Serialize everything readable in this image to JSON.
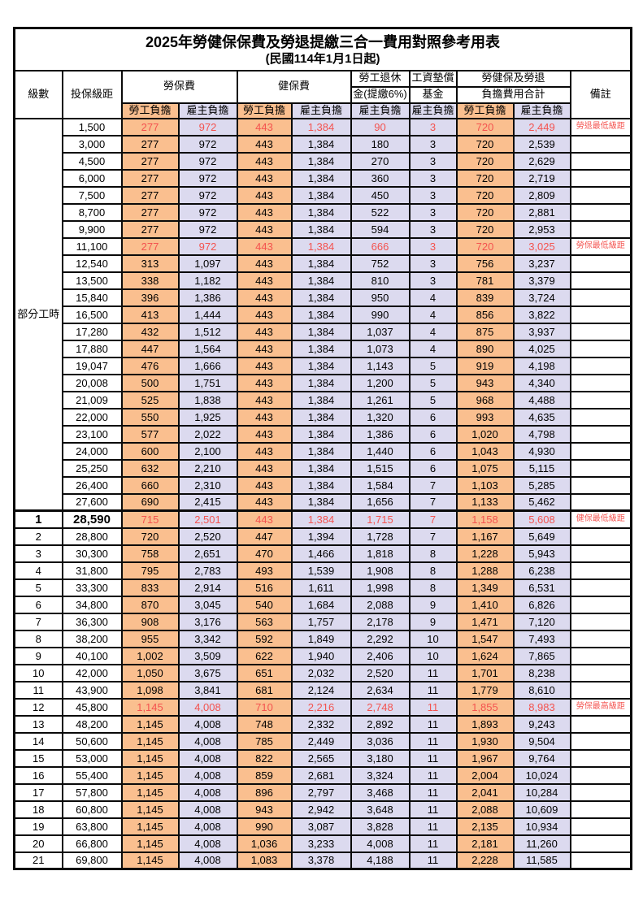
{
  "title": {
    "line1": "2025年勞健保保費及勞退提繳三合一費用對照參考用表",
    "line2": "(民國114年1月1日起)"
  },
  "columns": {
    "level": "級數",
    "bracket": "投保級距",
    "labor_insurance": "勞保費",
    "health_insurance": "健保費",
    "pension_line1": "勞工退休",
    "pension_line2": "金(提繳6%)",
    "wage_fund_line1": "工資墊償",
    "wage_fund_line2": "基金",
    "total_line1": "勞健保及勞退",
    "total_line2": "負擔費用合計",
    "remark": "備註",
    "employee_share": "勞工負擔",
    "employer_share": "雇主負擔"
  },
  "part_time": {
    "label": "部分工時",
    "row_count": 23
  },
  "colors": {
    "employee_bg": "#FABF8F",
    "employer_bg": "#DCDAEF",
    "highlight_text": "#F4534F",
    "border": "#0a0a0a"
  },
  "rows": [
    {
      "lvl": null,
      "bracket": "1,500",
      "fees": [
        "277",
        "972",
        "443",
        "1,384",
        "90",
        "3",
        "720",
        "2,449"
      ],
      "remark": "勞退最低級距",
      "hl": true
    },
    {
      "lvl": null,
      "bracket": "3,000",
      "fees": [
        "277",
        "972",
        "443",
        "1,384",
        "180",
        "3",
        "720",
        "2,539"
      ],
      "remark": ""
    },
    {
      "lvl": null,
      "bracket": "4,500",
      "fees": [
        "277",
        "972",
        "443",
        "1,384",
        "270",
        "3",
        "720",
        "2,629"
      ],
      "remark": ""
    },
    {
      "lvl": null,
      "bracket": "6,000",
      "fees": [
        "277",
        "972",
        "443",
        "1,384",
        "360",
        "3",
        "720",
        "2,719"
      ],
      "remark": ""
    },
    {
      "lvl": null,
      "bracket": "7,500",
      "fees": [
        "277",
        "972",
        "443",
        "1,384",
        "450",
        "3",
        "720",
        "2,809"
      ],
      "remark": ""
    },
    {
      "lvl": null,
      "bracket": "8,700",
      "fees": [
        "277",
        "972",
        "443",
        "1,384",
        "522",
        "3",
        "720",
        "2,881"
      ],
      "remark": ""
    },
    {
      "lvl": null,
      "bracket": "9,900",
      "fees": [
        "277",
        "972",
        "443",
        "1,384",
        "594",
        "3",
        "720",
        "2,953"
      ],
      "remark": ""
    },
    {
      "lvl": null,
      "bracket": "11,100",
      "fees": [
        "277",
        "972",
        "443",
        "1,384",
        "666",
        "3",
        "720",
        "3,025"
      ],
      "remark": "勞保最低級距",
      "hl": true
    },
    {
      "lvl": null,
      "bracket": "12,540",
      "fees": [
        "313",
        "1,097",
        "443",
        "1,384",
        "752",
        "3",
        "756",
        "3,237"
      ],
      "remark": ""
    },
    {
      "lvl": null,
      "bracket": "13,500",
      "fees": [
        "338",
        "1,182",
        "443",
        "1,384",
        "810",
        "3",
        "781",
        "3,379"
      ],
      "remark": ""
    },
    {
      "lvl": null,
      "bracket": "15,840",
      "fees": [
        "396",
        "1,386",
        "443",
        "1,384",
        "950",
        "4",
        "839",
        "3,724"
      ],
      "remark": ""
    },
    {
      "lvl": null,
      "bracket": "16,500",
      "fees": [
        "413",
        "1,444",
        "443",
        "1,384",
        "990",
        "4",
        "856",
        "3,822"
      ],
      "remark": ""
    },
    {
      "lvl": null,
      "bracket": "17,280",
      "fees": [
        "432",
        "1,512",
        "443",
        "1,384",
        "1,037",
        "4",
        "875",
        "3,937"
      ],
      "remark": ""
    },
    {
      "lvl": null,
      "bracket": "17,880",
      "fees": [
        "447",
        "1,564",
        "443",
        "1,384",
        "1,073",
        "4",
        "890",
        "4,025"
      ],
      "remark": ""
    },
    {
      "lvl": null,
      "bracket": "19,047",
      "fees": [
        "476",
        "1,666",
        "443",
        "1,384",
        "1,143",
        "5",
        "919",
        "4,198"
      ],
      "remark": ""
    },
    {
      "lvl": null,
      "bracket": "20,008",
      "fees": [
        "500",
        "1,751",
        "443",
        "1,384",
        "1,200",
        "5",
        "943",
        "4,340"
      ],
      "remark": ""
    },
    {
      "lvl": null,
      "bracket": "21,009",
      "fees": [
        "525",
        "1,838",
        "443",
        "1,384",
        "1,261",
        "5",
        "968",
        "4,488"
      ],
      "remark": ""
    },
    {
      "lvl": null,
      "bracket": "22,000",
      "fees": [
        "550",
        "1,925",
        "443",
        "1,384",
        "1,320",
        "6",
        "993",
        "4,635"
      ],
      "remark": ""
    },
    {
      "lvl": null,
      "bracket": "23,100",
      "fees": [
        "577",
        "2,022",
        "443",
        "1,384",
        "1,386",
        "6",
        "1,020",
        "4,798"
      ],
      "remark": ""
    },
    {
      "lvl": null,
      "bracket": "24,000",
      "fees": [
        "600",
        "2,100",
        "443",
        "1,384",
        "1,440",
        "6",
        "1,043",
        "4,930"
      ],
      "remark": ""
    },
    {
      "lvl": null,
      "bracket": "25,250",
      "fees": [
        "632",
        "2,210",
        "443",
        "1,384",
        "1,515",
        "6",
        "1,075",
        "5,115"
      ],
      "remark": ""
    },
    {
      "lvl": null,
      "bracket": "26,400",
      "fees": [
        "660",
        "2,310",
        "443",
        "1,384",
        "1,584",
        "7",
        "1,103",
        "5,285"
      ],
      "remark": ""
    },
    {
      "lvl": null,
      "bracket": "27,600",
      "fees": [
        "690",
        "2,415",
        "443",
        "1,384",
        "1,656",
        "7",
        "1,133",
        "5,462"
      ],
      "remark": ""
    },
    {
      "lvl": "1",
      "bracket": "28,590",
      "fees": [
        "715",
        "2,501",
        "443",
        "1,384",
        "1,715",
        "7",
        "1,158",
        "5,608"
      ],
      "remark": "健保最低級距",
      "hl": true,
      "sec": true,
      "big": true
    },
    {
      "lvl": "2",
      "bracket": "28,800",
      "fees": [
        "720",
        "2,520",
        "447",
        "1,394",
        "1,728",
        "7",
        "1,167",
        "5,649"
      ],
      "remark": ""
    },
    {
      "lvl": "3",
      "bracket": "30,300",
      "fees": [
        "758",
        "2,651",
        "470",
        "1,466",
        "1,818",
        "8",
        "1,228",
        "5,943"
      ],
      "remark": ""
    },
    {
      "lvl": "4",
      "bracket": "31,800",
      "fees": [
        "795",
        "2,783",
        "493",
        "1,539",
        "1,908",
        "8",
        "1,288",
        "6,238"
      ],
      "remark": ""
    },
    {
      "lvl": "5",
      "bracket": "33,300",
      "fees": [
        "833",
        "2,914",
        "516",
        "1,611",
        "1,998",
        "8",
        "1,349",
        "6,531"
      ],
      "remark": ""
    },
    {
      "lvl": "6",
      "bracket": "34,800",
      "fees": [
        "870",
        "3,045",
        "540",
        "1,684",
        "2,088",
        "9",
        "1,410",
        "6,826"
      ],
      "remark": ""
    },
    {
      "lvl": "7",
      "bracket": "36,300",
      "fees": [
        "908",
        "3,176",
        "563",
        "1,757",
        "2,178",
        "9",
        "1,471",
        "7,120"
      ],
      "remark": ""
    },
    {
      "lvl": "8",
      "bracket": "38,200",
      "fees": [
        "955",
        "3,342",
        "592",
        "1,849",
        "2,292",
        "10",
        "1,547",
        "7,493"
      ],
      "remark": ""
    },
    {
      "lvl": "9",
      "bracket": "40,100",
      "fees": [
        "1,002",
        "3,509",
        "622",
        "1,940",
        "2,406",
        "10",
        "1,624",
        "7,865"
      ],
      "remark": ""
    },
    {
      "lvl": "10",
      "bracket": "42,000",
      "fees": [
        "1,050",
        "3,675",
        "651",
        "2,032",
        "2,520",
        "11",
        "1,701",
        "8,238"
      ],
      "remark": ""
    },
    {
      "lvl": "11",
      "bracket": "43,900",
      "fees": [
        "1,098",
        "3,841",
        "681",
        "2,124",
        "2,634",
        "11",
        "1,779",
        "8,610"
      ],
      "remark": ""
    },
    {
      "lvl": "12",
      "bracket": "45,800",
      "fees": [
        "1,145",
        "4,008",
        "710",
        "2,216",
        "2,748",
        "11",
        "1,855",
        "8,983"
      ],
      "remark": "勞保最高級距",
      "hl": true
    },
    {
      "lvl": "13",
      "bracket": "48,200",
      "fees": [
        "1,145",
        "4,008",
        "748",
        "2,332",
        "2,892",
        "11",
        "1,893",
        "9,243"
      ],
      "remark": ""
    },
    {
      "lvl": "14",
      "bracket": "50,600",
      "fees": [
        "1,145",
        "4,008",
        "785",
        "2,449",
        "3,036",
        "11",
        "1,930",
        "9,504"
      ],
      "remark": ""
    },
    {
      "lvl": "15",
      "bracket": "53,000",
      "fees": [
        "1,145",
        "4,008",
        "822",
        "2,565",
        "3,180",
        "11",
        "1,967",
        "9,764"
      ],
      "remark": ""
    },
    {
      "lvl": "16",
      "bracket": "55,400",
      "fees": [
        "1,145",
        "4,008",
        "859",
        "2,681",
        "3,324",
        "11",
        "2,004",
        "10,024"
      ],
      "remark": ""
    },
    {
      "lvl": "17",
      "bracket": "57,800",
      "fees": [
        "1,145",
        "4,008",
        "896",
        "2,797",
        "3,468",
        "11",
        "2,041",
        "10,284"
      ],
      "remark": ""
    },
    {
      "lvl": "18",
      "bracket": "60,800",
      "fees": [
        "1,145",
        "4,008",
        "943",
        "2,942",
        "3,648",
        "11",
        "2,088",
        "10,609"
      ],
      "remark": ""
    },
    {
      "lvl": "19",
      "bracket": "63,800",
      "fees": [
        "1,145",
        "4,008",
        "990",
        "3,087",
        "3,828",
        "11",
        "2,135",
        "10,934"
      ],
      "remark": ""
    },
    {
      "lvl": "20",
      "bracket": "66,800",
      "fees": [
        "1,145",
        "4,008",
        "1,036",
        "3,233",
        "4,008",
        "11",
        "2,181",
        "11,260"
      ],
      "remark": ""
    },
    {
      "lvl": "21",
      "bracket": "69,800",
      "fees": [
        "1,145",
        "4,008",
        "1,083",
        "3,378",
        "4,188",
        "11",
        "2,228",
        "11,585"
      ],
      "remark": ""
    }
  ]
}
